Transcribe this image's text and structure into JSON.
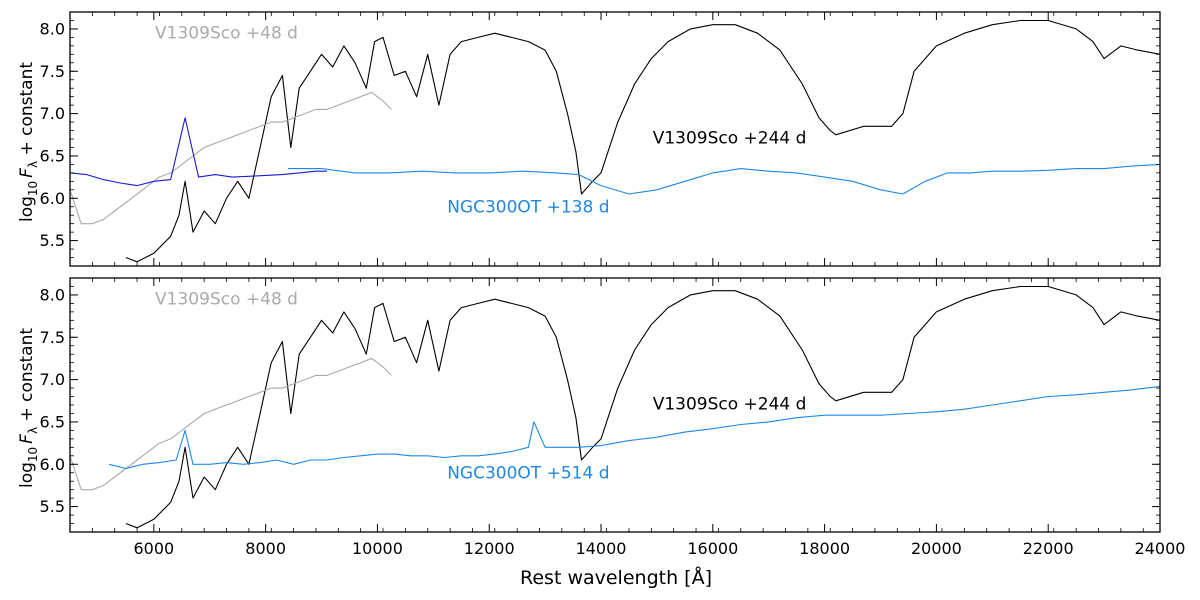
{
  "figure": {
    "xlabel": "Rest wavelength [Å]",
    "ylabel_prefix": "log",
    "ylabel_sub": "10",
    "ylabel_f": "F",
    "ylabel_lambda": "λ",
    "ylabel_suffix": " + constant"
  },
  "colors": {
    "v1309_late": "#000000",
    "v1309_early": "#aaaaaa",
    "ngc_optical": "#1a1acc",
    "ngc_ir": "#1e88e5"
  },
  "chart_data": [
    {
      "type": "line",
      "panel": "top",
      "xlabel": "",
      "ylabel": "log10 Fλ + constant",
      "xlim": [
        4500,
        24000
      ],
      "ylim": [
        5.2,
        8.2
      ],
      "xticks": [
        6000,
        8000,
        10000,
        12000,
        14000,
        16000,
        18000,
        20000,
        22000,
        24000
      ],
      "yticks": [
        5.5,
        6.0,
        6.5,
        7.0,
        7.5,
        8.0
      ],
      "grid": false,
      "annotations": [
        {
          "text": "V1309Sco +48 d",
          "color": "#aaaaaa",
          "x": 7300,
          "y": 7.96
        },
        {
          "text": "V1309Sco +244 d",
          "color": "#000000",
          "x": 16300,
          "y": 6.72
        },
        {
          "text": "NGC300OT +138 d",
          "color": "#1e88e5",
          "x": 12700,
          "y": 5.9
        }
      ],
      "series": [
        {
          "label": "V1309Sco +244 d",
          "color": "#000000",
          "x": [
            5500,
            5700,
            6000,
            6300,
            6450,
            6560,
            6700,
            6900,
            7100,
            7300,
            7500,
            7700,
            7900,
            8100,
            8300,
            8450,
            8600,
            8800,
            9000,
            9200,
            9400,
            9600,
            9800,
            9950,
            10100,
            10300,
            10500,
            10700,
            10900,
            11100,
            11300,
            11500,
            11800,
            12100,
            12400,
            12700,
            13000,
            13200,
            13400,
            13550,
            13650,
            13850,
            14000,
            14300,
            14600,
            14900,
            15200,
            15600,
            16000,
            16400,
            16800,
            17200,
            17600,
            17900,
            18100,
            18200,
            18700,
            19200,
            19400,
            19600,
            20000,
            20500,
            21000,
            21500,
            22000,
            22500,
            22800,
            23000,
            23300,
            23600,
            24000
          ],
          "y": [
            5.3,
            5.25,
            5.35,
            5.55,
            5.8,
            6.2,
            5.6,
            5.85,
            5.7,
            6.0,
            6.2,
            6.0,
            6.6,
            7.2,
            7.45,
            6.6,
            7.3,
            7.5,
            7.7,
            7.55,
            7.8,
            7.6,
            7.3,
            7.85,
            7.9,
            7.45,
            7.5,
            7.2,
            7.7,
            7.1,
            7.7,
            7.85,
            7.9,
            7.95,
            7.9,
            7.85,
            7.75,
            7.5,
            7.0,
            6.55,
            6.05,
            6.2,
            6.3,
            6.9,
            7.35,
            7.65,
            7.85,
            8.0,
            8.05,
            8.05,
            7.95,
            7.75,
            7.35,
            6.95,
            6.8,
            6.75,
            6.85,
            6.85,
            7.0,
            7.5,
            7.8,
            7.95,
            8.05,
            8.1,
            8.1,
            8.0,
            7.85,
            7.65,
            7.8,
            7.75,
            7.7
          ]
        },
        {
          "label": "V1309Sco +48 d",
          "color": "#aaaaaa",
          "x": [
            4500,
            4700,
            4900,
            5100,
            5300,
            5500,
            5700,
            5900,
            6100,
            6300,
            6500,
            6700,
            6900,
            7100,
            7300,
            7500,
            7700,
            7900,
            8100,
            8300,
            8500,
            8700,
            8900,
            9100,
            9300,
            9500,
            9700,
            9900,
            10100,
            10250
          ],
          "y": [
            6.1,
            5.7,
            5.7,
            5.75,
            5.85,
            5.95,
            6.05,
            6.15,
            6.25,
            6.3,
            6.4,
            6.5,
            6.6,
            6.65,
            6.7,
            6.75,
            6.8,
            6.85,
            6.9,
            6.9,
            6.95,
            7.0,
            7.05,
            7.05,
            7.1,
            7.15,
            7.2,
            7.25,
            7.15,
            7.05
          ]
        },
        {
          "label": "NGC300OT +138 d (optical)",
          "color": "#1a1acc",
          "x": [
            4500,
            4800,
            5100,
            5400,
            5700,
            6000,
            6300,
            6560,
            6800,
            7100,
            7400,
            7700,
            8000,
            8300,
            8600,
            8900,
            9100
          ],
          "y": [
            6.3,
            6.28,
            6.22,
            6.18,
            6.15,
            6.2,
            6.22,
            6.95,
            6.25,
            6.28,
            6.25,
            6.26,
            6.27,
            6.28,
            6.3,
            6.32,
            6.32
          ]
        },
        {
          "label": "NGC300OT +138 d",
          "color": "#1e88e5",
          "x": [
            8400,
            9000,
            9600,
            10200,
            10800,
            11400,
            12000,
            12600,
            13200,
            13600,
            14000,
            14500,
            15000,
            15500,
            16000,
            16500,
            17000,
            17500,
            18000,
            18500,
            19000,
            19400,
            19800,
            20200,
            20600,
            21000,
            21500,
            22000,
            22500,
            23000,
            23500,
            24000
          ],
          "y": [
            6.35,
            6.35,
            6.3,
            6.3,
            6.32,
            6.3,
            6.3,
            6.32,
            6.3,
            6.28,
            6.15,
            6.05,
            6.1,
            6.2,
            6.3,
            6.35,
            6.32,
            6.3,
            6.25,
            6.2,
            6.1,
            6.05,
            6.2,
            6.3,
            6.3,
            6.32,
            6.32,
            6.33,
            6.35,
            6.35,
            6.38,
            6.4
          ]
        }
      ]
    },
    {
      "type": "line",
      "panel": "bottom",
      "xlabel": "Rest wavelength [Å]",
      "ylabel": "log10 Fλ + constant",
      "xlim": [
        4500,
        24000
      ],
      "ylim": [
        5.2,
        8.2
      ],
      "xticks": [
        6000,
        8000,
        10000,
        12000,
        14000,
        16000,
        18000,
        20000,
        22000,
        24000
      ],
      "yticks": [
        5.5,
        6.0,
        6.5,
        7.0,
        7.5,
        8.0
      ],
      "grid": false,
      "annotations": [
        {
          "text": "V1309Sco +48 d",
          "color": "#aaaaaa",
          "x": 7300,
          "y": 7.96
        },
        {
          "text": "V1309Sco +244 d",
          "color": "#000000",
          "x": 16300,
          "y": 6.72
        },
        {
          "text": "NGC300OT +514 d",
          "color": "#1e88e5",
          "x": 12700,
          "y": 5.9
        }
      ],
      "series": [
        {
          "label": "V1309Sco +244 d",
          "color": "#000000",
          "x": [
            5500,
            5700,
            6000,
            6300,
            6450,
            6560,
            6700,
            6900,
            7100,
            7300,
            7500,
            7700,
            7900,
            8100,
            8300,
            8450,
            8600,
            8800,
            9000,
            9200,
            9400,
            9600,
            9800,
            9950,
            10100,
            10300,
            10500,
            10700,
            10900,
            11100,
            11300,
            11500,
            11800,
            12100,
            12400,
            12700,
            13000,
            13200,
            13400,
            13550,
            13650,
            13850,
            14000,
            14300,
            14600,
            14900,
            15200,
            15600,
            16000,
            16400,
            16800,
            17200,
            17600,
            17900,
            18100,
            18200,
            18700,
            19200,
            19400,
            19600,
            20000,
            20500,
            21000,
            21500,
            22000,
            22500,
            22800,
            23000,
            23300,
            23600,
            24000
          ],
          "y": [
            5.3,
            5.25,
            5.35,
            5.55,
            5.8,
            6.2,
            5.6,
            5.85,
            5.7,
            6.0,
            6.2,
            6.0,
            6.6,
            7.2,
            7.45,
            6.6,
            7.3,
            7.5,
            7.7,
            7.55,
            7.8,
            7.6,
            7.3,
            7.85,
            7.9,
            7.45,
            7.5,
            7.2,
            7.7,
            7.1,
            7.7,
            7.85,
            7.9,
            7.95,
            7.9,
            7.85,
            7.75,
            7.5,
            7.0,
            6.55,
            6.05,
            6.2,
            6.3,
            6.9,
            7.35,
            7.65,
            7.85,
            8.0,
            8.05,
            8.05,
            7.95,
            7.75,
            7.35,
            6.95,
            6.8,
            6.75,
            6.85,
            6.85,
            7.0,
            7.5,
            7.8,
            7.95,
            8.05,
            8.1,
            8.1,
            8.0,
            7.85,
            7.65,
            7.8,
            7.75,
            7.7
          ]
        },
        {
          "label": "V1309Sco +48 d",
          "color": "#aaaaaa",
          "x": [
            4500,
            4700,
            4900,
            5100,
            5300,
            5500,
            5700,
            5900,
            6100,
            6300,
            6500,
            6700,
            6900,
            7100,
            7300,
            7500,
            7700,
            7900,
            8100,
            8300,
            8500,
            8700,
            8900,
            9100,
            9300,
            9500,
            9700,
            9900,
            10100,
            10250
          ],
          "y": [
            6.1,
            5.7,
            5.7,
            5.75,
            5.85,
            5.95,
            6.05,
            6.15,
            6.25,
            6.3,
            6.4,
            6.5,
            6.6,
            6.65,
            6.7,
            6.75,
            6.8,
            6.85,
            6.9,
            6.9,
            6.95,
            7.0,
            7.05,
            7.05,
            7.1,
            7.15,
            7.2,
            7.25,
            7.15,
            7.05
          ]
        },
        {
          "label": "NGC300OT +514 d",
          "color": "#1e88e5",
          "x": [
            5200,
            5500,
            5800,
            6100,
            6400,
            6560,
            6700,
            7000,
            7300,
            7600,
            7900,
            8200,
            8500,
            8800,
            9100,
            9400,
            9700,
            10000,
            10300,
            10600,
            10900,
            11200,
            11500,
            11800,
            12100,
            12400,
            12700,
            12800,
            13000,
            13300,
            13600,
            14000,
            14500,
            15000,
            15500,
            16000,
            16500,
            17000,
            17500,
            18000,
            18500,
            19000,
            19500,
            20000,
            20500,
            21000,
            21500,
            22000,
            22500,
            23000,
            23500,
            24000
          ],
          "y": [
            6.0,
            5.95,
            6.0,
            6.02,
            6.05,
            6.4,
            6.0,
            6.0,
            6.02,
            6.0,
            6.02,
            6.05,
            6.0,
            6.05,
            6.05,
            6.08,
            6.1,
            6.12,
            6.12,
            6.1,
            6.1,
            6.08,
            6.1,
            6.1,
            6.12,
            6.15,
            6.2,
            6.5,
            6.2,
            6.2,
            6.2,
            6.22,
            6.28,
            6.32,
            6.38,
            6.42,
            6.47,
            6.5,
            6.55,
            6.58,
            6.58,
            6.58,
            6.6,
            6.62,
            6.65,
            6.7,
            6.75,
            6.8,
            6.82,
            6.85,
            6.88,
            6.92
          ]
        }
      ]
    }
  ]
}
